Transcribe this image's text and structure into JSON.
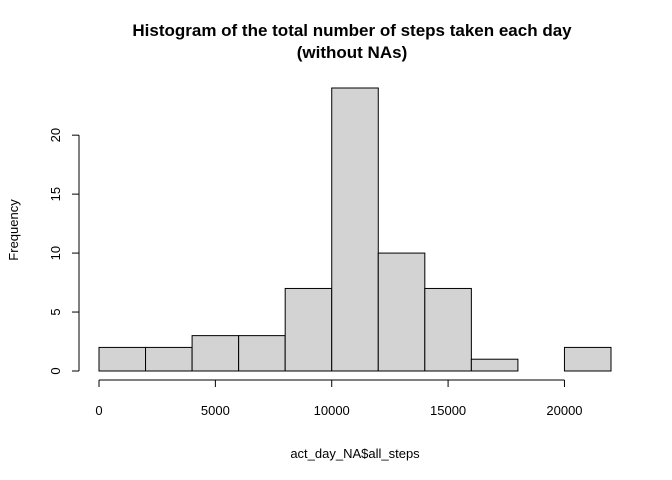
{
  "chart_data": {
    "type": "bar",
    "title": "Histogram of the total number of steps taken each day",
    "subtitle": "(without NAs)",
    "xlabel": "act_day_NA$all_steps",
    "ylabel": "Frequency",
    "bin_width": 2000,
    "bins": [
      {
        "from": 0,
        "to": 2000,
        "count": 2
      },
      {
        "from": 2000,
        "to": 4000,
        "count": 2
      },
      {
        "from": 4000,
        "to": 6000,
        "count": 3
      },
      {
        "from": 6000,
        "to": 8000,
        "count": 3
      },
      {
        "from": 8000,
        "to": 10000,
        "count": 7
      },
      {
        "from": 10000,
        "to": 12000,
        "count": 24
      },
      {
        "from": 12000,
        "to": 14000,
        "count": 10
      },
      {
        "from": 14000,
        "to": 16000,
        "count": 7
      },
      {
        "from": 16000,
        "to": 18000,
        "count": 1
      },
      {
        "from": 18000,
        "to": 20000,
        "count": 0
      },
      {
        "from": 20000,
        "to": 22000,
        "count": 2
      }
    ],
    "x_ticks": [
      0,
      5000,
      10000,
      15000,
      20000
    ],
    "y_ticks": [
      0,
      5,
      10,
      15,
      20
    ],
    "xlim": [
      0,
      22000
    ],
    "ylim": [
      0,
      24
    ],
    "grid": false,
    "colors": {
      "bar_fill": "#d3d3d3",
      "bar_stroke": "#000000"
    }
  }
}
